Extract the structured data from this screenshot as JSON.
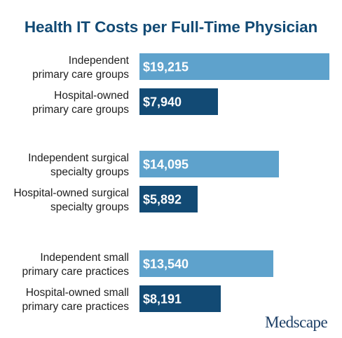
{
  "chart_data": {
    "type": "bar",
    "orientation": "horizontal",
    "title": "Health IT Costs per Full-Time Physician",
    "xlabel": "",
    "ylabel": "",
    "xlim": [
      0,
      19215
    ],
    "grid": false,
    "legend": "none",
    "categories": [
      [
        "Independent",
        "primary care groups"
      ],
      [
        "Hospital-owned",
        "primary care groups"
      ],
      [
        "Independent surgical",
        "specialty groups"
      ],
      [
        "Hospital-owned surgical",
        "specialty groups"
      ],
      [
        "Independent small",
        "primary care practices"
      ],
      [
        "Hospital-owned small",
        "primary care practices"
      ]
    ],
    "values": [
      19215,
      7940,
      14095,
      5892,
      13540,
      8191
    ],
    "data_labels": [
      "$19,215",
      "$7,940",
      "$14,095",
      "$5,892",
      "$13,540",
      "$8,191"
    ],
    "bar_colors": [
      "#5ea2cc",
      "#124a74",
      "#5ea2cc",
      "#124a74",
      "#5ea2cc",
      "#124a74"
    ]
  },
  "colors": {
    "title": "#124a74",
    "independent": "#5ea2cc",
    "hospital_owned": "#124a74"
  },
  "logo": {
    "text": "Medscape"
  }
}
